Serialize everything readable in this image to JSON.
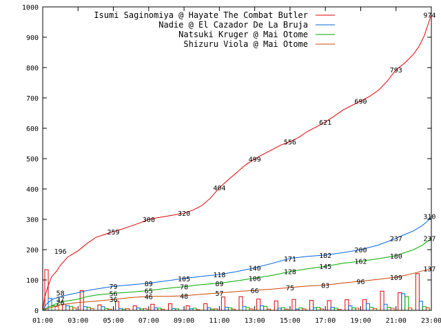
{
  "chart_data": {
    "type": "line",
    "x_ticks": [
      "01:00",
      "03:00",
      "05:00",
      "07:00",
      "09:00",
      "11:00",
      "13:00",
      "15:00",
      "17:00",
      "19:00",
      "21:00",
      "23:00"
    ],
    "y_ticks": [
      "0",
      "100",
      "200",
      "300",
      "400",
      "500",
      "600",
      "700",
      "800",
      "900",
      "1000"
    ],
    "xlim_hours": [
      1,
      23
    ],
    "ylim": [
      0,
      1000
    ],
    "grid": false,
    "legend_position": "top-right",
    "series": [
      {
        "name": "Isumi Saginomiya @ Hayate The Combat Butler",
        "color": "#dd0000",
        "points": [
          [
            1.0,
            0
          ],
          [
            1.1,
            40
          ],
          [
            1.3,
            80
          ],
          [
            1.5,
            110
          ],
          [
            1.8,
            130
          ],
          [
            2.0,
            148
          ],
          [
            2.4,
            175
          ],
          [
            3.0,
            196
          ],
          [
            3.5,
            220
          ],
          [
            4.0,
            240
          ],
          [
            4.5,
            250
          ],
          [
            5.0,
            259
          ],
          [
            5.5,
            268
          ],
          [
            6.0,
            278
          ],
          [
            6.5,
            288
          ],
          [
            7.0,
            300
          ],
          [
            7.5,
            305
          ],
          [
            8.0,
            310
          ],
          [
            8.5,
            315
          ],
          [
            9.0,
            320
          ],
          [
            9.5,
            330
          ],
          [
            10.0,
            345
          ],
          [
            10.5,
            370
          ],
          [
            11.0,
            404
          ],
          [
            11.5,
            430
          ],
          [
            12.0,
            455
          ],
          [
            12.5,
            480
          ],
          [
            13.0,
            499
          ],
          [
            13.5,
            515
          ],
          [
            14.0,
            530
          ],
          [
            14.5,
            545
          ],
          [
            15.0,
            556
          ],
          [
            15.5,
            570
          ],
          [
            16.0,
            590
          ],
          [
            16.5,
            605
          ],
          [
            17.0,
            621
          ],
          [
            17.5,
            640
          ],
          [
            18.0,
            660
          ],
          [
            18.5,
            675
          ],
          [
            19.0,
            690
          ],
          [
            19.5,
            705
          ],
          [
            20.0,
            725
          ],
          [
            20.5,
            755
          ],
          [
            21.0,
            793
          ],
          [
            21.5,
            815
          ],
          [
            22.0,
            845
          ],
          [
            22.3,
            870
          ],
          [
            22.6,
            905
          ],
          [
            22.8,
            940
          ],
          [
            23.0,
            974
          ]
        ],
        "labels": [
          {
            "x": 2.0,
            "y": 196,
            "text": "196"
          },
          {
            "x": 5.0,
            "y": 259,
            "text": "259"
          },
          {
            "x": 7.0,
            "y": 300,
            "text": "300"
          },
          {
            "x": 9.0,
            "y": 320,
            "text": "320"
          },
          {
            "x": 11.0,
            "y": 404,
            "text": "404"
          },
          {
            "x": 13.0,
            "y": 499,
            "text": "499"
          },
          {
            "x": 15.0,
            "y": 556,
            "text": "556"
          },
          {
            "x": 17.0,
            "y": 621,
            "text": "621"
          },
          {
            "x": 19.0,
            "y": 690,
            "text": "690"
          },
          {
            "x": 21.0,
            "y": 793,
            "text": "793"
          },
          {
            "x": 22.9,
            "y": 974,
            "text": "974"
          }
        ],
        "hourly": [
          134,
          20,
          65,
          18,
          30,
          15,
          20,
          22,
          15,
          22,
          44,
          45,
          37,
          31,
          36,
          33,
          32,
          35,
          35,
          63,
          58,
          121
        ]
      },
      {
        "name": "Nadie @ El Cazador De La Bruja",
        "color": "#0066dd",
        "points": [
          [
            1.0,
            0
          ],
          [
            1.2,
            20
          ],
          [
            1.5,
            35
          ],
          [
            2.0,
            45
          ],
          [
            2.5,
            52
          ],
          [
            3.0,
            58
          ],
          [
            3.5,
            65
          ],
          [
            4.0,
            70
          ],
          [
            5.0,
            79
          ],
          [
            6.0,
            84
          ],
          [
            7.0,
            89
          ],
          [
            8.0,
            97
          ],
          [
            9.0,
            105
          ],
          [
            10.0,
            112
          ],
          [
            11.0,
            118
          ],
          [
            12.0,
            128
          ],
          [
            13.0,
            140
          ],
          [
            14.0,
            155
          ],
          [
            15.0,
            171
          ],
          [
            16.0,
            178
          ],
          [
            17.0,
            182
          ],
          [
            18.0,
            190
          ],
          [
            19.0,
            200
          ],
          [
            20.0,
            215
          ],
          [
            21.0,
            237
          ],
          [
            21.5,
            250
          ],
          [
            22.0,
            262
          ],
          [
            22.5,
            280
          ],
          [
            22.8,
            295
          ],
          [
            23.0,
            310
          ]
        ],
        "labels": [
          {
            "x": 2.0,
            "y": 58,
            "text": "58"
          },
          {
            "x": 5.0,
            "y": 79,
            "text": "79"
          },
          {
            "x": 7.0,
            "y": 89,
            "text": "89"
          },
          {
            "x": 9.0,
            "y": 105,
            "text": "105"
          },
          {
            "x": 11.0,
            "y": 118,
            "text": "118"
          },
          {
            "x": 13.0,
            "y": 140,
            "text": "140"
          },
          {
            "x": 15.0,
            "y": 171,
            "text": "171"
          },
          {
            "x": 17.0,
            "y": 182,
            "text": "182"
          },
          {
            "x": 19.0,
            "y": 200,
            "text": "200"
          },
          {
            "x": 21.0,
            "y": 237,
            "text": "237"
          },
          {
            "x": 22.9,
            "y": 310,
            "text": "310"
          }
        ],
        "hourly": [
          40,
          15,
          12,
          12,
          6,
          8,
          8,
          6,
          5,
          8,
          10,
          12,
          15,
          7,
          4,
          8,
          10,
          15,
          22,
          20,
          55,
          30
        ]
      },
      {
        "name": "Natsuki Kruger @ Mai Otome",
        "color": "#00aa00",
        "points": [
          [
            1.0,
            0
          ],
          [
            1.3,
            10
          ],
          [
            1.7,
            20
          ],
          [
            2.0,
            27
          ],
          [
            2.5,
            32
          ],
          [
            3.0,
            37
          ],
          [
            3.5,
            45
          ],
          [
            4.0,
            50
          ],
          [
            5.0,
            56
          ],
          [
            6.0,
            60
          ],
          [
            7.0,
            65
          ],
          [
            8.0,
            72
          ],
          [
            9.0,
            78
          ],
          [
            10.0,
            85
          ],
          [
            11.0,
            89
          ],
          [
            12.0,
            97
          ],
          [
            13.0,
            106
          ],
          [
            14.0,
            115
          ],
          [
            15.0,
            128
          ],
          [
            16.0,
            137
          ],
          [
            17.0,
            145
          ],
          [
            18.0,
            155
          ],
          [
            19.0,
            162
          ],
          [
            20.0,
            170
          ],
          [
            21.0,
            180
          ],
          [
            21.5,
            190
          ],
          [
            22.0,
            200
          ],
          [
            22.5,
            215
          ],
          [
            23.0,
            237
          ]
        ],
        "labels": [
          {
            "x": 2.0,
            "y": 37,
            "text": "37"
          },
          {
            "x": 5.0,
            "y": 56,
            "text": "56"
          },
          {
            "x": 7.0,
            "y": 65,
            "text": "65"
          },
          {
            "x": 9.0,
            "y": 78,
            "text": "78"
          },
          {
            "x": 11.0,
            "y": 89,
            "text": "89"
          },
          {
            "x": 13.0,
            "y": 106,
            "text": "106"
          },
          {
            "x": 15.0,
            "y": 128,
            "text": "128"
          },
          {
            "x": 17.0,
            "y": 145,
            "text": "145"
          },
          {
            "x": 19.0,
            "y": 162,
            "text": "162"
          },
          {
            "x": 21.0,
            "y": 180,
            "text": "180"
          },
          {
            "x": 22.9,
            "y": 237,
            "text": "237"
          }
        ],
        "hourly": [
          15,
          12,
          10,
          6,
          4,
          5,
          7,
          5,
          7,
          4,
          8,
          9,
          13,
          9,
          8,
          10,
          7,
          8,
          10,
          10,
          45,
          12
        ]
      },
      {
        "name": "Shizuru Viola @ Mai Otome",
        "color": "#cc4400",
        "points": [
          [
            1.0,
            0
          ],
          [
            1.5,
            10
          ],
          [
            2.0,
            18
          ],
          [
            2.5,
            22
          ],
          [
            3.0,
            26
          ],
          [
            4.0,
            30
          ],
          [
            5.0,
            36
          ],
          [
            6.0,
            42
          ],
          [
            7.0,
            46
          ],
          [
            8.0,
            46
          ],
          [
            9.0,
            48
          ],
          [
            10.0,
            53
          ],
          [
            11.0,
            57
          ],
          [
            12.0,
            62
          ],
          [
            13.0,
            66
          ],
          [
            14.0,
            70
          ],
          [
            15.0,
            75
          ],
          [
            16.0,
            80
          ],
          [
            17.0,
            83
          ],
          [
            18.0,
            90
          ],
          [
            19.0,
            96
          ],
          [
            20.0,
            102
          ],
          [
            21.0,
            109
          ],
          [
            21.5,
            115
          ],
          [
            22.0,
            122
          ],
          [
            22.5,
            130
          ],
          [
            23.0,
            137
          ]
        ],
        "labels": [
          {
            "x": 2.0,
            "y": 26,
            "text": "26"
          },
          {
            "x": 5.0,
            "y": 36,
            "text": "36"
          },
          {
            "x": 7.0,
            "y": 46,
            "text": "46"
          },
          {
            "x": 9.0,
            "y": 48,
            "text": "48"
          },
          {
            "x": 11.0,
            "y": 57,
            "text": "57"
          },
          {
            "x": 13.0,
            "y": 66,
            "text": "66"
          },
          {
            "x": 15.0,
            "y": 75,
            "text": "75"
          },
          {
            "x": 17.0,
            "y": 83,
            "text": "83"
          },
          {
            "x": 19.0,
            "y": 96,
            "text": "96"
          },
          {
            "x": 21.0,
            "y": 109,
            "text": "109"
          },
          {
            "x": 22.9,
            "y": 137,
            "text": "137"
          }
        ],
        "hourly": [
          12,
          8,
          6,
          4,
          6,
          6,
          4,
          0,
          2,
          5,
          4,
          5,
          4,
          4,
          5,
          5,
          3,
          7,
          6,
          7,
          8,
          8
        ]
      }
    ]
  }
}
